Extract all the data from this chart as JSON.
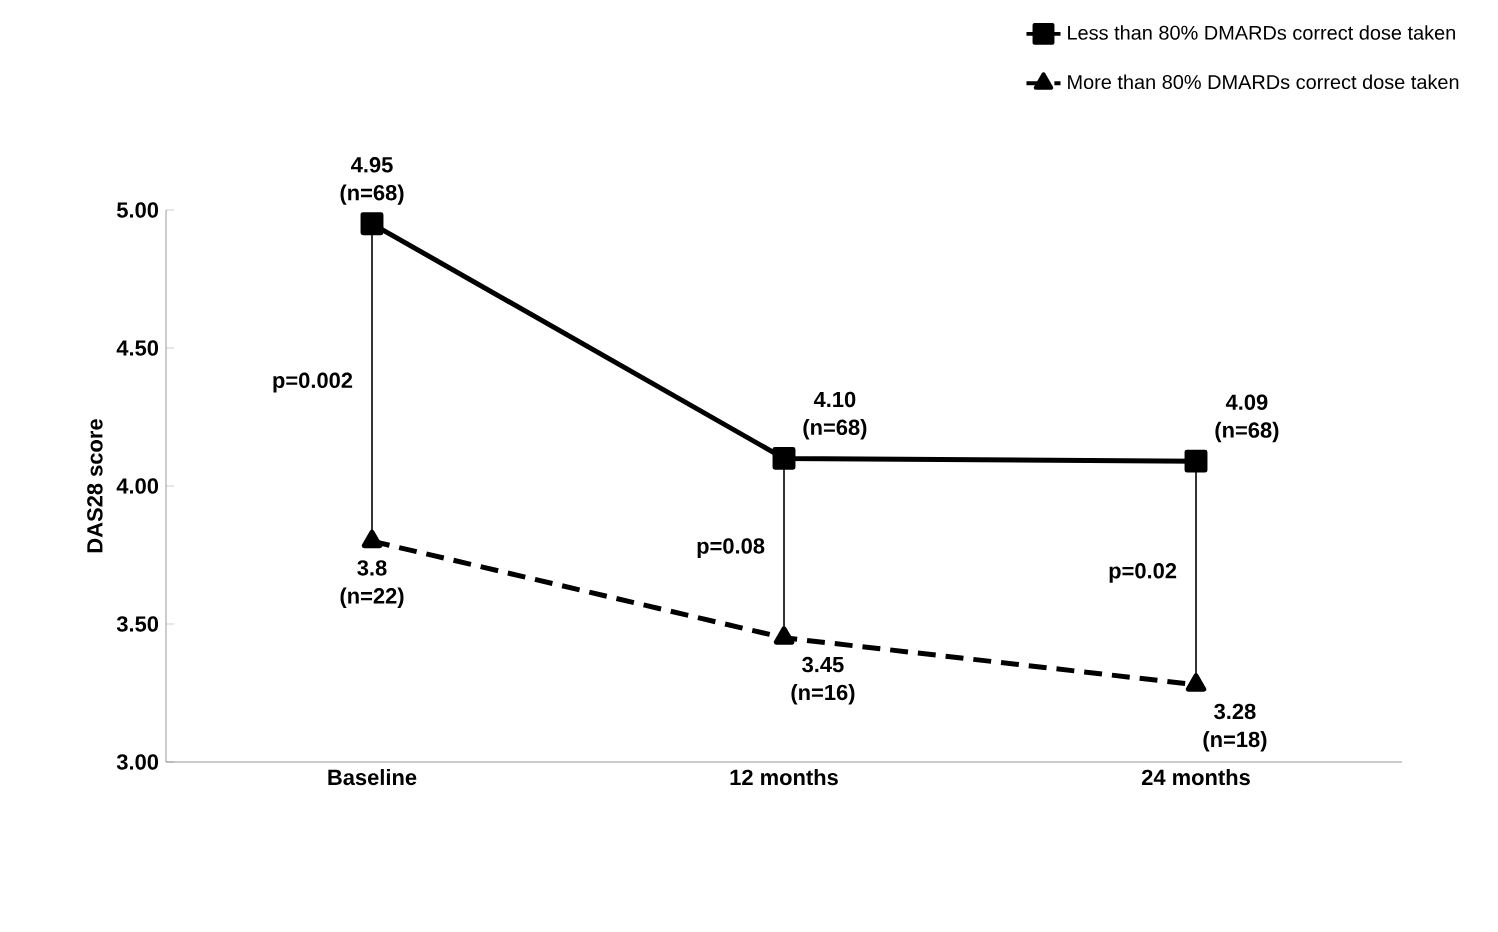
{
  "chart_data": {
    "type": "line",
    "ylabel": "DAS28 score",
    "categories": [
      "Baseline",
      "12 months",
      "24 months"
    ],
    "series": [
      {
        "name": "Less than 80% DMARDs correct dose taken",
        "color": "#000000",
        "values": [
          4.95,
          4.1,
          4.09
        ],
        "marker": "square",
        "line_style": "solid",
        "value_labels": [
          "4.95 (n=68)",
          "4.10 (n=68)",
          "4.09 (n=68)"
        ]
      },
      {
        "name": "More than 80% DMARDs correct dose taken",
        "color": "#000000",
        "values": [
          3.8,
          3.45,
          3.28
        ],
        "marker": "triangle",
        "line_style": "dashed",
        "value_labels": [
          "3.8 (n=22)",
          "3.45 (n=16)",
          "3.28 (n=18)"
        ]
      }
    ],
    "ylim": [
      3,
      5
    ],
    "yticks": [
      {
        "value": 3,
        "label": "3.00"
      },
      {
        "value": 3.5,
        "label": "3.50"
      },
      {
        "value": 4,
        "label": "4.00"
      },
      {
        "value": 4.5,
        "label": "4.50"
      },
      {
        "value": 5,
        "label": "5.00"
      }
    ],
    "grid": false,
    "legend": "top right",
    "annotations": [
      "p=0.002",
      "p=0.08",
      "p=0.02"
    ]
  }
}
